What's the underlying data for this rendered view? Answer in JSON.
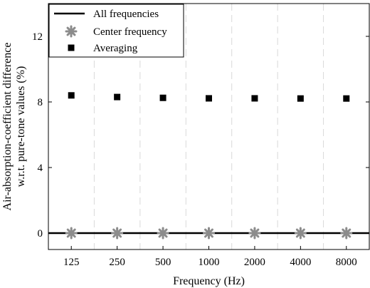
{
  "chart_data": {
    "type": "scatter",
    "xlabel": "Frequency (Hz)",
    "ylabel_lines": [
      "Air-absorption-coefficient difference",
      "w.r.t. pure-tone values (%)"
    ],
    "categories": [
      "125",
      "250",
      "500",
      "1000",
      "2000",
      "4000",
      "8000"
    ],
    "yticks": [
      "0",
      "4",
      "8",
      "12"
    ],
    "ytick_values": [
      0,
      4,
      8,
      12
    ],
    "ylim": [
      -1,
      14
    ],
    "grid": "x-only-dashed-band-edges",
    "legend_position": "top-left",
    "series": [
      {
        "name": "All frequencies",
        "style": "line",
        "color": "#000000",
        "values": [
          0,
          0,
          0,
          0,
          0,
          0,
          0
        ]
      },
      {
        "name": "Center frequency",
        "style": "asterisk",
        "color": "#8c8c8c",
        "values": [
          0,
          0,
          0,
          0,
          0,
          0,
          0
        ]
      },
      {
        "name": "Averaging",
        "style": "square",
        "color": "#000000",
        "values": [
          8.4,
          8.3,
          8.25,
          8.22,
          8.22,
          8.21,
          8.21
        ]
      }
    ]
  }
}
